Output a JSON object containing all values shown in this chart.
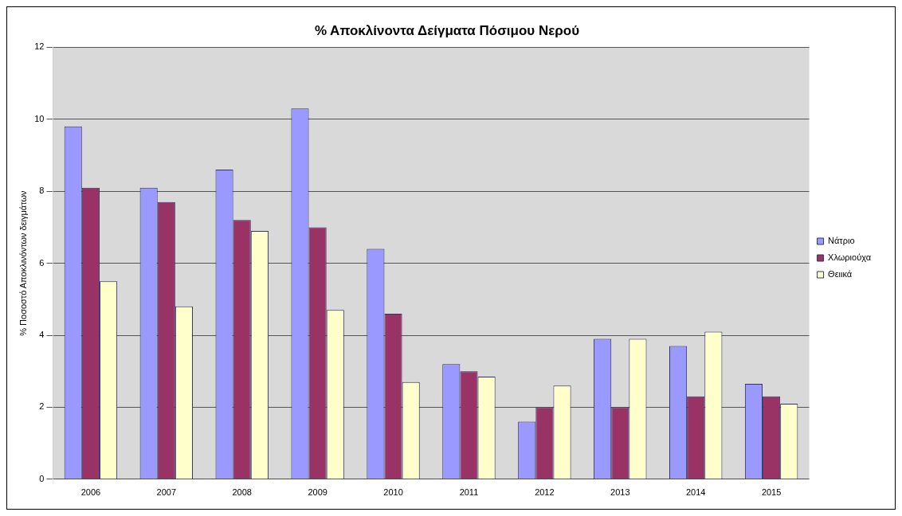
{
  "chart_data": {
    "type": "bar",
    "title": "% Αποκλίνοντα Δείγματα Πόσιμου Νερού",
    "ylabel": "% Ποσοστό Αποκλινόντων δειγμάτων",
    "categories": [
      "2006",
      "2007",
      "2008",
      "2009",
      "2010",
      "2011",
      "2012",
      "2013",
      "2014",
      "2015"
    ],
    "series": [
      {
        "name": "Νάτριο",
        "color": "#9999ff",
        "values": [
          9.8,
          8.1,
          8.6,
          10.3,
          6.4,
          3.2,
          1.6,
          3.9,
          3.7,
          2.65
        ]
      },
      {
        "name": "Χλωριούχα",
        "color": "#993366",
        "values": [
          8.1,
          7.7,
          7.2,
          7.0,
          4.6,
          3.0,
          2.0,
          2.0,
          2.3,
          2.3
        ]
      },
      {
        "name": "Θειικά",
        "color": "#ffffcc",
        "values": [
          5.5,
          4.8,
          6.9,
          4.7,
          2.7,
          2.85,
          2.6,
          3.9,
          4.1,
          2.1
        ]
      }
    ],
    "ylim": [
      0,
      12
    ],
    "yticks": [
      0,
      2,
      4,
      6,
      8,
      10,
      12
    ],
    "grid": "y",
    "legend": "right"
  }
}
